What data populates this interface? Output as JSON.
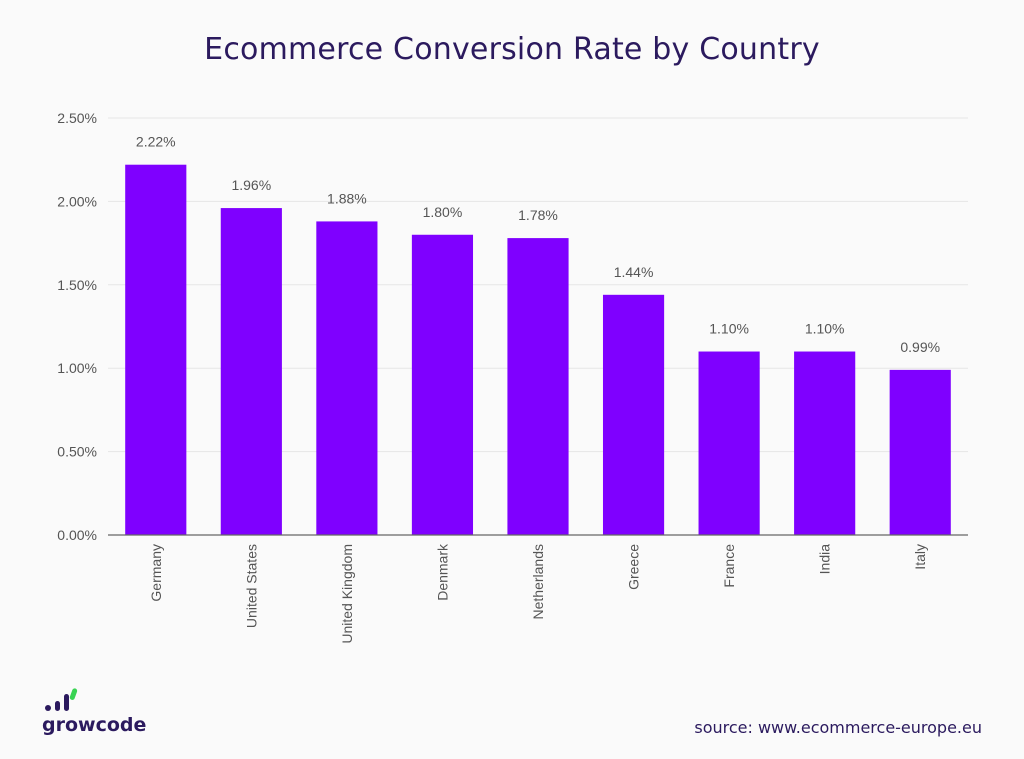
{
  "chart_data": {
    "type": "bar",
    "title": "Ecommerce Conversion Rate by Country",
    "categories": [
      "Germany",
      "United States",
      "United Kingdom",
      "Denmark",
      "Netherlands",
      "Greece",
      "France",
      "India",
      "Italy"
    ],
    "values": [
      2.22,
      1.96,
      1.88,
      1.8,
      1.78,
      1.44,
      1.1,
      1.1,
      0.99
    ],
    "value_labels": [
      "2.22%",
      "1.96%",
      "1.88%",
      "1.80%",
      "1.78%",
      "1.44%",
      "1.10%",
      "1.10%",
      "0.99%"
    ],
    "y_ticks": [
      0,
      0.5,
      1.0,
      1.5,
      2.0,
      2.5
    ],
    "y_tick_labels": [
      "0.00%",
      "0.50%",
      "1.00%",
      "1.50%",
      "2.00%",
      "2.50%"
    ],
    "ylim": [
      0,
      2.5
    ],
    "grid": true,
    "bar_color": "#7f00ff"
  },
  "branding": {
    "logo_text": "growcode",
    "logo_dot_color": "#2b1a5e",
    "logo_accent_color": "#39d353"
  },
  "footer": {
    "source": "source: www.ecommerce-europe.eu"
  }
}
